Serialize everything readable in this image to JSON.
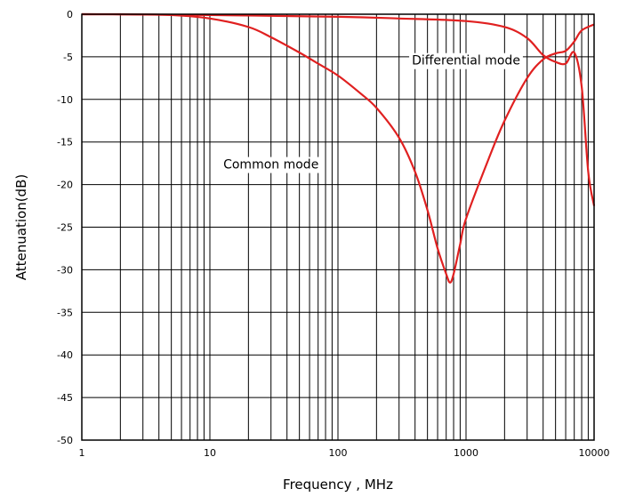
{
  "chart_data": {
    "type": "line",
    "xlabel": "Frequency , MHz",
    "ylabel": "Attenuation(dB)",
    "x_scale": "log",
    "xlim": [
      1,
      10000
    ],
    "ylim": [
      -50,
      0
    ],
    "x_ticks": [
      "1",
      "10",
      "100",
      "1000",
      "10000"
    ],
    "y_ticks": [
      "0",
      "-5",
      "-10",
      "-15",
      "-20",
      "-25",
      "-30",
      "-35",
      "-40",
      "-45",
      "-50"
    ],
    "grid": true,
    "line_color": "#e02020",
    "annotations": [
      {
        "text": "Common mode",
        "x": 30,
        "y": -17.6
      },
      {
        "text": "Differential mode",
        "x": 1000,
        "y": -5.4
      }
    ],
    "series": [
      {
        "x": [
          1,
          2,
          5,
          10,
          20,
          30,
          50,
          70,
          100,
          150,
          200,
          300,
          400,
          500,
          600,
          700,
          750,
          800,
          900,
          1000,
          1500,
          2000,
          3000,
          4000,
          5000,
          6000,
          7000,
          8000,
          10000
        ],
        "y": [
          0,
          0,
          -0.1,
          -0.5,
          -1.5,
          -2.7,
          -4.5,
          -5.8,
          -7.2,
          -9.3,
          -11.0,
          -14.5,
          -18.5,
          -23.0,
          -27.5,
          -30.5,
          -31.5,
          -30.5,
          -27.0,
          -24.0,
          -17.0,
          -12.5,
          -7.5,
          -5.3,
          -4.6,
          -4.3,
          -3.2,
          -1.9,
          -1.2
        ]
      },
      {
        "x": [
          1,
          10,
          100,
          300,
          1000,
          2000,
          3000,
          4000,
          5000,
          6000,
          7000,
          8000,
          9000,
          10000
        ],
        "y": [
          0,
          -0.1,
          -0.3,
          -0.5,
          -0.8,
          -1.5,
          -2.8,
          -4.8,
          -5.6,
          -5.8,
          -4.5,
          -8.5,
          -18.5,
          -22.5
        ]
      }
    ]
  }
}
